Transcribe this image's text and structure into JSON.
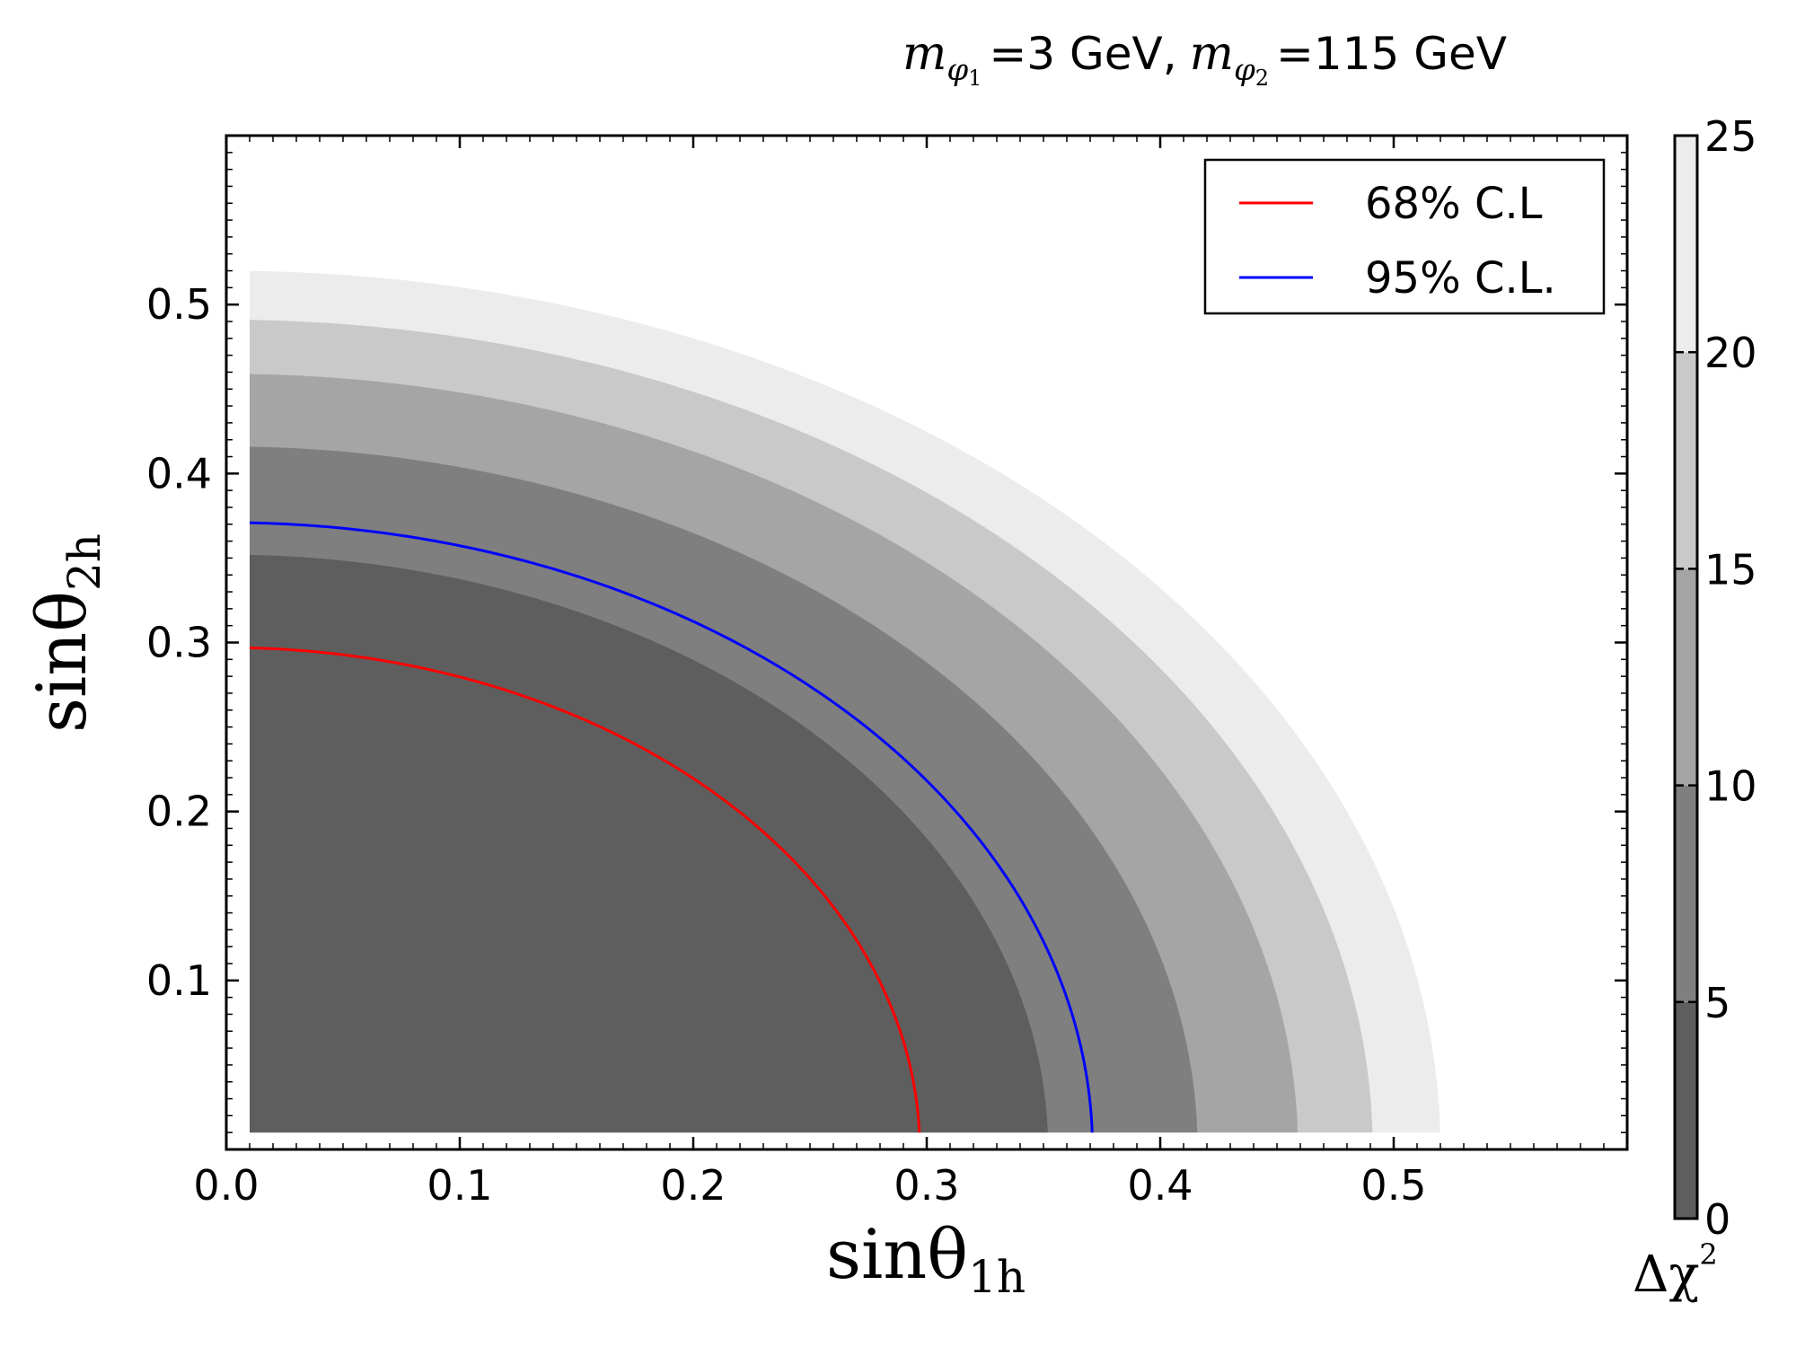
{
  "chart_data": {
    "type": "contour",
    "title_parts": {
      "m1_symbol": "m",
      "m1_sub": "φ",
      "m1_subsub": "1",
      "m1_value": "=3 GeV,",
      "m2_symbol": "m",
      "m2_sub": "φ",
      "m2_subsub": "2",
      "m2_value": "=115 GeV"
    },
    "xlabel": {
      "main": "sinθ",
      "sub": "1h"
    },
    "ylabel": {
      "main": "sinθ",
      "sub": "2h"
    },
    "xlim": [
      0.0,
      0.6
    ],
    "ylim": [
      0.0,
      0.6
    ],
    "xticks": [
      0.0,
      0.1,
      0.2,
      0.3,
      0.4,
      0.5
    ],
    "xtick_labels": [
      "0.0",
      "0.1",
      "0.2",
      "0.3",
      "0.4",
      "0.5"
    ],
    "yticks": [
      0.1,
      0.2,
      0.3,
      0.4,
      0.5
    ],
    "ytick_labels": [
      "0.1",
      "0.2",
      "0.3",
      "0.4",
      "0.5"
    ],
    "data_extent": {
      "xmin": 0.01,
      "ymin": 0.01
    },
    "filled_bands": [
      {
        "delta_chi2_range": [
          0,
          5
        ],
        "outer_radius": 0.352,
        "color": "#5e5e5e"
      },
      {
        "delta_chi2_range": [
          5,
          10
        ],
        "outer_radius": 0.416,
        "color": "#7f7f7f"
      },
      {
        "delta_chi2_range": [
          10,
          15
        ],
        "outer_radius": 0.459,
        "color": "#a5a5a5"
      },
      {
        "delta_chi2_range": [
          15,
          20
        ],
        "outer_radius": 0.491,
        "color": "#c9c9c9"
      },
      {
        "delta_chi2_range": [
          20,
          25
        ],
        "outer_radius": 0.52,
        "color": "#ececec"
      }
    ],
    "contour_lines": [
      {
        "name": "68% C.L",
        "radius": 0.297,
        "color": "#ff0000"
      },
      {
        "name": "95% C.L.",
        "radius": 0.371,
        "color": "#0000ff"
      }
    ],
    "legend": {
      "position": "top-right",
      "entries": [
        "68% C.L",
        "95% C.L."
      ]
    },
    "colorbar": {
      "range": [
        0,
        25
      ],
      "ticks": [
        0,
        5,
        10,
        15,
        20,
        25
      ],
      "tick_labels": [
        "0",
        "5",
        "10",
        "15",
        "20",
        "25"
      ],
      "label": "Δχ²",
      "label_main": "Δχ",
      "label_sup": "2"
    }
  }
}
